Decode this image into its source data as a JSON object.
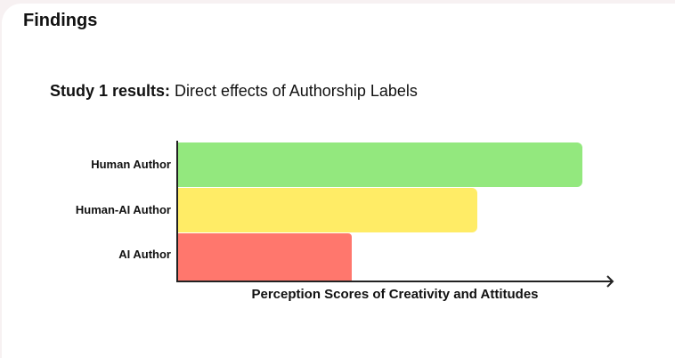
{
  "page": {
    "section_title": "Findings",
    "subtitle_bold": "Study 1 results:",
    "subtitle_rest": " Direct effects of Authorship Labels"
  },
  "chart_data": {
    "type": "bar",
    "orientation": "horizontal",
    "title": "Study 1 results: Direct effects of Authorship Labels",
    "categories": [
      "Human Author",
      "Human-AI Author",
      "AI Author"
    ],
    "values": [
      93,
      69,
      40
    ],
    "value_note": "relative bar lengths estimated from pixels; no numeric ticks shown",
    "colors": [
      "#93e87e",
      "#ffec66",
      "#ff776d"
    ],
    "xlabel": "Perception Scores of Creativity and Attitudes",
    "ylabel": "",
    "xlim": [
      0,
      100
    ],
    "grid": false,
    "legend": null
  }
}
